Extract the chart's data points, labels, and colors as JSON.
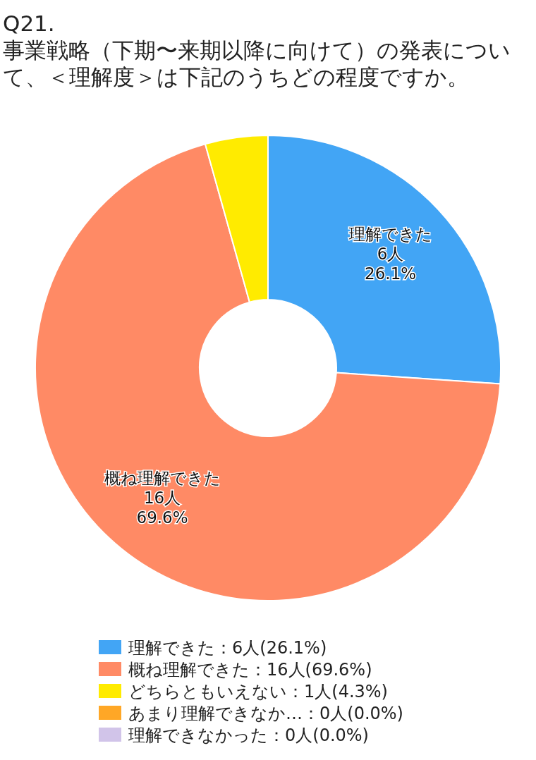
{
  "chart_data": {
    "type": "donut",
    "title": "Q21.\n事業戦略（下期〜来期以降に向けて）の発表について、＜理解度＞は下記のうちどの程度ですか。",
    "categories": [
      "理解できた：6人(26.1%)",
      "概ね理解できた：16人(69.6%)",
      "どちらともいえない：1人(4.3%)",
      "あまり理解できなか…：0人(0.0%)",
      "理解できなかった：0人(0.0%)"
    ],
    "values": [
      6,
      16,
      1,
      0,
      0
    ],
    "colors": [
      "#42a5f5",
      "#ff8a65",
      "#ffeb00",
      "#ffa726",
      "#d1c4e9"
    ],
    "value_labels": [
      "理解できた\n6人\n26.1%",
      "概ね理解できた\n16人\n69.6%",
      null,
      null,
      null
    ],
    "legend": "bottom"
  }
}
